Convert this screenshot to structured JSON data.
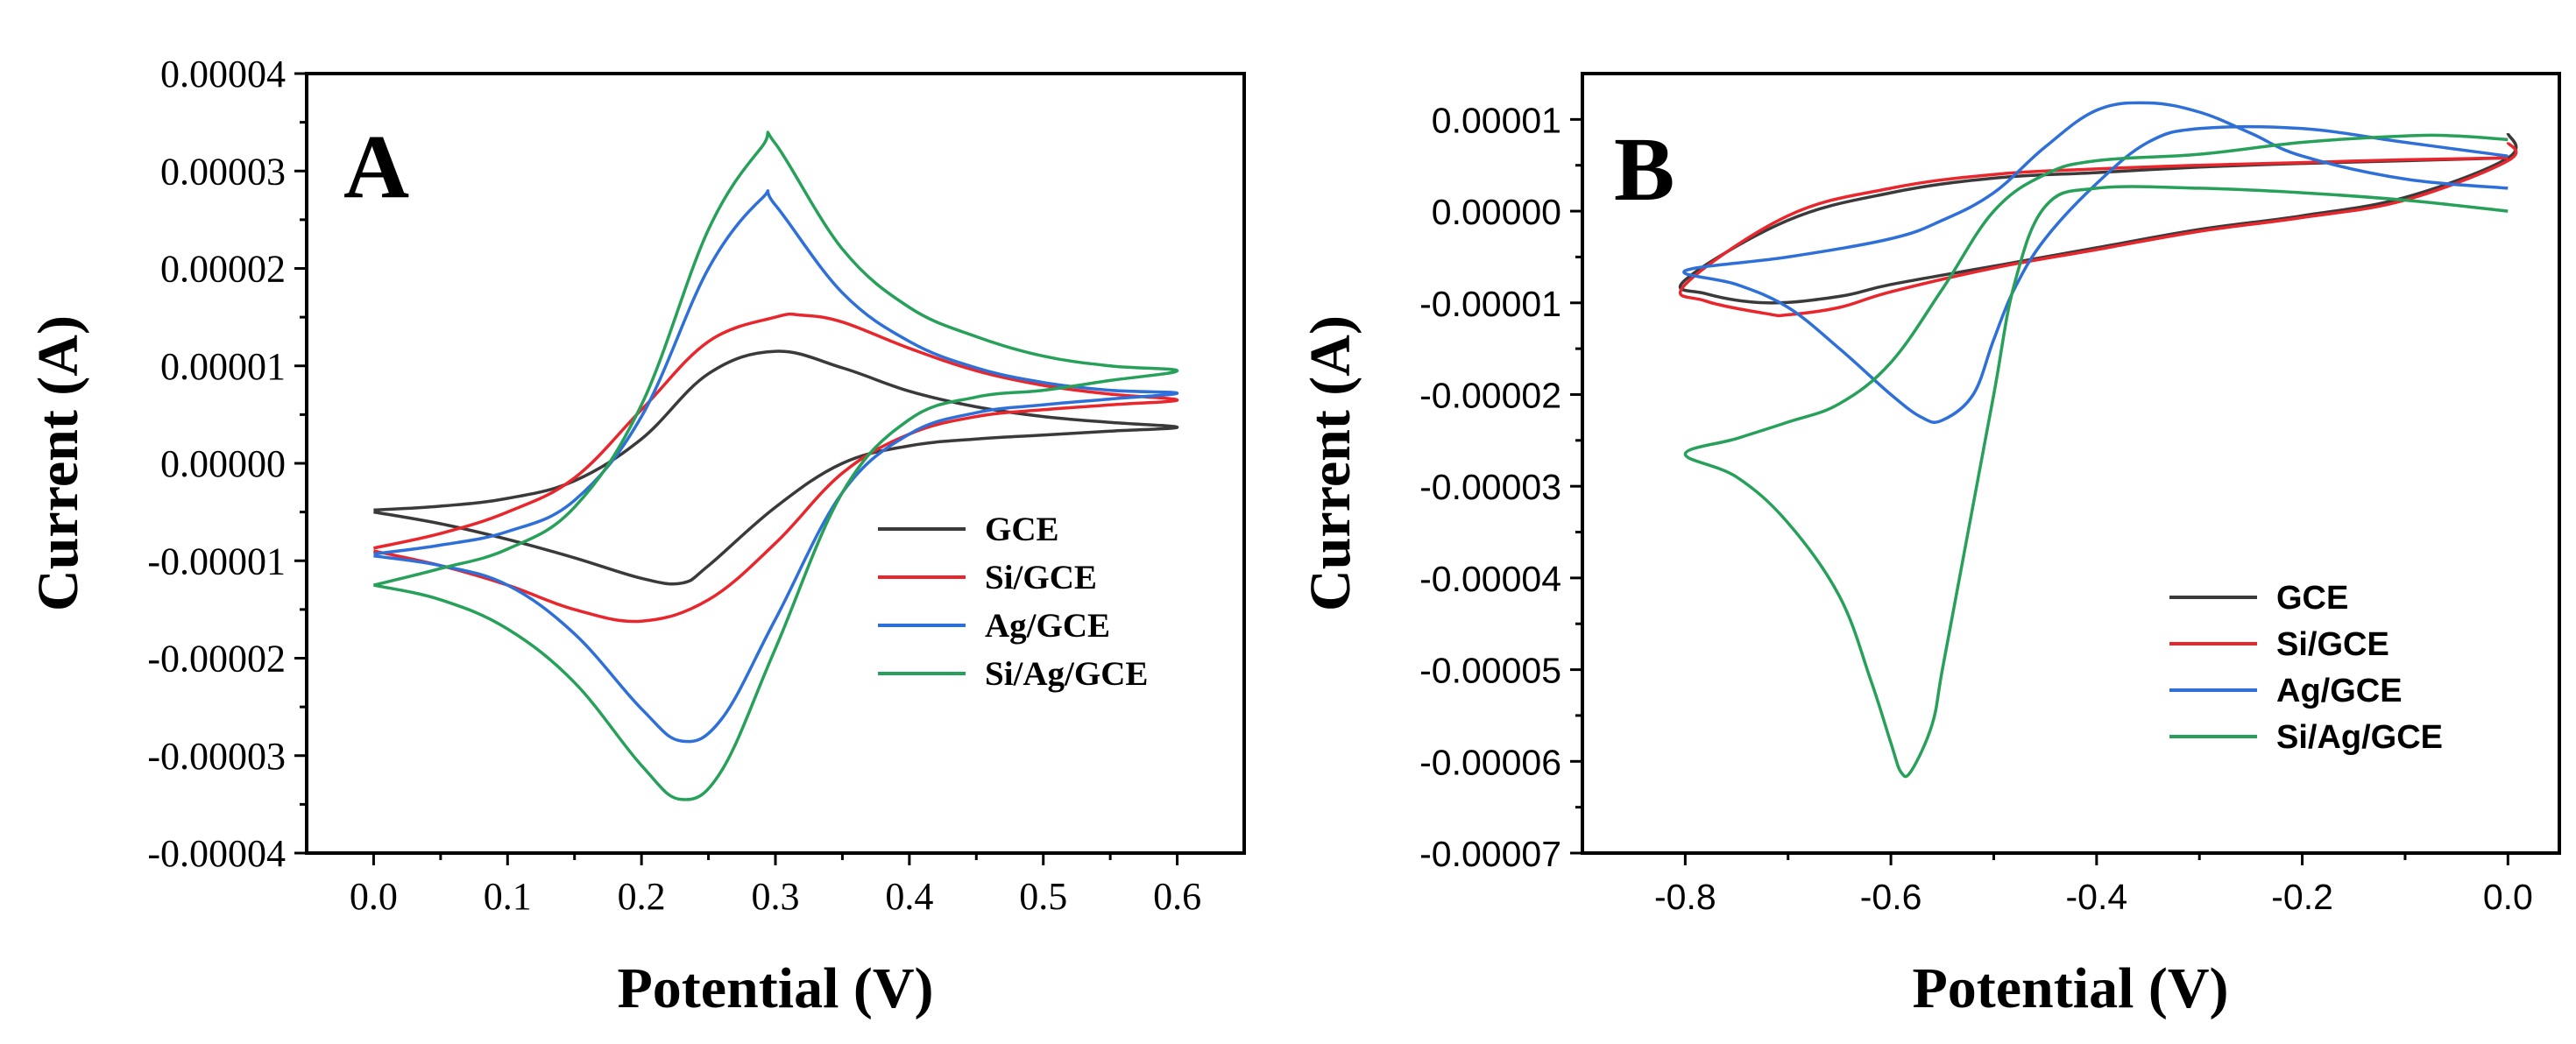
{
  "chart_data": [
    {
      "type": "line",
      "panel": "A",
      "xlabel": "Potential (V)",
      "ylabel": "Current (A)",
      "xlim": [
        -0.05,
        0.65
      ],
      "ylim": [
        -4e-05,
        4e-05
      ],
      "xticks": [
        "0.0",
        "0.1",
        "0.2",
        "0.3",
        "0.4",
        "0.5",
        "0.6"
      ],
      "xtick_values": [
        0.0,
        0.1,
        0.2,
        0.3,
        0.4,
        0.5,
        0.6
      ],
      "yticks": [
        "0.00004",
        "0.00003",
        "0.00002",
        "0.00001",
        "0.00000",
        "-0.00001",
        "-0.00002",
        "-0.00003",
        "-0.00004"
      ],
      "ytick_values": [
        4e-05,
        3e-05,
        2e-05,
        1e-05,
        0.0,
        -1e-05,
        -2e-05,
        -3e-05,
        -4e-05
      ],
      "grid": false,
      "legend_position": "lower-right",
      "series": [
        {
          "name": "GCE",
          "color": "#3a3a3a",
          "x": [
            0.0,
            0.05,
            0.1,
            0.15,
            0.2,
            0.25,
            0.3,
            0.35,
            0.4,
            0.45,
            0.5,
            0.55,
            0.6,
            0.55,
            0.5,
            0.45,
            0.4,
            0.35,
            0.3,
            0.25,
            0.23,
            0.2,
            0.15,
            0.1,
            0.05,
            0.0
          ],
          "y": [
            -4.8e-06,
            -4.4e-06,
            -3.6e-06,
            -1.8e-06,
            2.5e-06,
            9.2e-06,
            1.15e-05,
            9.8e-06,
            7.4e-06,
            5.8e-06,
            4.8e-06,
            4.2e-06,
            3.7e-06,
            3.3e-06,
            2.9e-06,
            2.5e-06,
            1.8e-06,
            0.0,
            -4.5e-06,
            -1.05e-05,
            -1.23e-05,
            -1.18e-05,
            -9.7e-06,
            -7.8e-06,
            -6.2e-06,
            -5e-06
          ]
        },
        {
          "name": "Si/GCE",
          "color": "#e8262c",
          "x": [
            0.0,
            0.05,
            0.1,
            0.15,
            0.2,
            0.25,
            0.3,
            0.32,
            0.35,
            0.4,
            0.45,
            0.5,
            0.55,
            0.6,
            0.55,
            0.5,
            0.45,
            0.4,
            0.35,
            0.3,
            0.25,
            0.2,
            0.15,
            0.1,
            0.05,
            0.0
          ],
          "y": [
            -8.7e-06,
            -7.2e-06,
            -5e-06,
            -1.5e-06,
            5.5e-06,
            1.25e-05,
            1.5e-05,
            1.52e-05,
            1.45e-05,
            1.18e-05,
            9.5e-06,
            8e-06,
            7.1e-06,
            6.5e-06,
            6e-06,
            5.5e-06,
            4.8e-06,
            3e-06,
            -1e-06,
            -8.2e-06,
            -1.4e-05,
            -1.62e-05,
            -1.5e-05,
            -1.25e-05,
            -1.05e-05,
            -9e-06
          ]
        },
        {
          "name": "Ag/GCE",
          "color": "#2e6fd8",
          "x": [
            0.0,
            0.05,
            0.1,
            0.15,
            0.2,
            0.25,
            0.29,
            0.3,
            0.35,
            0.4,
            0.45,
            0.5,
            0.55,
            0.6,
            0.55,
            0.5,
            0.45,
            0.4,
            0.35,
            0.3,
            0.26,
            0.23,
            0.2,
            0.15,
            0.1,
            0.05,
            0.0
          ],
          "y": [
            -9.3e-06,
            -8.4e-06,
            -7e-06,
            -3.8e-06,
            4.8e-06,
            2e-05,
            2.72e-05,
            2.65e-05,
            1.75e-05,
            1.25e-05,
            9.8e-06,
            8.3e-06,
            7.5e-06,
            7.2e-06,
            6.6e-06,
            6e-06,
            5.2e-06,
            3e-06,
            -3e-06,
            -1.6e-05,
            -2.62e-05,
            -2.85e-05,
            -2.52e-05,
            -1.75e-05,
            -1.25e-05,
            -1.05e-05,
            -9.5e-06
          ]
        },
        {
          "name": "Si/Ag/GCE",
          "color": "#27a05a",
          "x": [
            0.0,
            0.05,
            0.1,
            0.15,
            0.2,
            0.25,
            0.29,
            0.3,
            0.35,
            0.4,
            0.45,
            0.5,
            0.55,
            0.6,
            0.55,
            0.5,
            0.45,
            0.4,
            0.35,
            0.3,
            0.26,
            0.23,
            0.2,
            0.15,
            0.1,
            0.05,
            0.0
          ],
          "y": [
            -1.25e-05,
            -1.08e-05,
            -8.8e-06,
            -4.5e-06,
            6e-06,
            2.4e-05,
            3.25e-05,
            3.28e-05,
            2.2e-05,
            1.6e-05,
            1.3e-05,
            1.1e-05,
            1e-05,
            9.5e-06,
            8.5e-06,
            7.5e-06,
            6.8e-06,
            4.5e-06,
            -3e-06,
            -1.9e-05,
            -3.15e-05,
            -3.45e-05,
            -3.1e-05,
            -2.25e-05,
            -1.7e-05,
            -1.4e-05,
            -1.25e-05
          ]
        }
      ]
    },
    {
      "type": "line",
      "panel": "B",
      "xlabel": "Potential (V)",
      "ylabel": "Current (A)",
      "xlim": [
        -0.9,
        0.05
      ],
      "ylim": [
        -7e-05,
        1.5e-05
      ],
      "xticks": [
        "-0.8",
        "-0.6",
        "-0.4",
        "-0.2",
        "0.0"
      ],
      "xtick_values": [
        -0.8,
        -0.6,
        -0.4,
        -0.2,
        0.0
      ],
      "yticks": [
        "0.00001",
        "0.00000",
        "-0.00001",
        "-0.00002",
        "-0.00003",
        "-0.00004",
        "-0.00005",
        "-0.00006",
        "-0.00007"
      ],
      "ytick_values": [
        1e-05,
        0.0,
        -1e-05,
        -2e-05,
        -3e-05,
        -4e-05,
        -5e-05,
        -6e-05,
        -7e-05
      ],
      "grid": false,
      "legend_position": "lower-right",
      "series": [
        {
          "name": "GCE",
          "color": "#3a3a3a",
          "x": [
            0.0,
            -0.1,
            -0.2,
            -0.3,
            -0.4,
            -0.5,
            -0.6,
            -0.7,
            -0.8,
            -0.78,
            -0.72,
            -0.65,
            -0.6,
            -0.5,
            -0.4,
            -0.3,
            -0.2,
            -0.1,
            0.0,
            0.0
          ],
          "y": [
            5.8e-06,
            5.5e-06,
            5.2e-06,
            4.8e-06,
            4.2e-06,
            3.6e-06,
            2e-06,
            -1e-06,
            -7.5e-06,
            -9e-06,
            -1e-05,
            -9.3e-06,
            -8e-06,
            -6e-06,
            -4e-06,
            -2e-06,
            -5e-07,
            1.5e-06,
            5.8e-06,
            8.5e-06
          ]
        },
        {
          "name": "Si/GCE",
          "color": "#e8262c",
          "x": [
            0.0,
            -0.1,
            -0.2,
            -0.3,
            -0.4,
            -0.5,
            -0.6,
            -0.7,
            -0.8,
            -0.78,
            -0.72,
            -0.7,
            -0.65,
            -0.6,
            -0.5,
            -0.4,
            -0.3,
            -0.2,
            -0.1,
            0.0,
            0.0
          ],
          "y": [
            5.8e-06,
            5.6e-06,
            5.3e-06,
            5e-06,
            4.6e-06,
            4e-06,
            2.5e-06,
            -5e-07,
            -8e-06,
            -9.8e-06,
            -1.12e-05,
            -1.13e-05,
            -1.05e-05,
            -8.8e-06,
            -6.2e-06,
            -4.2e-06,
            -2.2e-06,
            -7e-07,
            1.2e-06,
            5.5e-06,
            7.5e-06
          ]
        },
        {
          "name": "Ag/GCE",
          "color": "#2e6fd8",
          "x": [
            0.0,
            -0.1,
            -0.2,
            -0.25,
            -0.3,
            -0.35,
            -0.4,
            -0.45,
            -0.5,
            -0.55,
            -0.6,
            -0.7,
            -0.8,
            -0.75,
            -0.7,
            -0.65,
            -0.6,
            -0.57,
            -0.55,
            -0.52,
            -0.5,
            -0.48,
            -0.45,
            -0.4,
            -0.35,
            -0.3,
            -0.2,
            -0.1,
            0.0
          ],
          "y": [
            2.5e-06,
            3.5e-06,
            6e-06,
            8.5e-06,
            1.08e-05,
            1.18e-05,
            1.1e-05,
            7e-06,
            2e-06,
            -1e-06,
            -3e-06,
            -5e-06,
            -6.5e-06,
            -8e-06,
            -1.05e-05,
            -1.5e-05,
            -2e-05,
            -2.25e-05,
            -2.28e-05,
            -2e-05,
            -1.4e-05,
            -8.5e-06,
            -3e-06,
            3e-06,
            7.5e-06,
            9e-06,
            9e-06,
            7.5e-06,
            6e-06
          ]
        },
        {
          "name": "Si/Ag/GCE",
          "color": "#27a05a",
          "x": [
            0.0,
            -0.05,
            -0.1,
            -0.2,
            -0.3,
            -0.4,
            -0.45,
            -0.5,
            -0.55,
            -0.6,
            -0.65,
            -0.7,
            -0.75,
            -0.8,
            -0.75,
            -0.7,
            -0.65,
            -0.62,
            -0.6,
            -0.59,
            -0.58,
            -0.56,
            -0.55,
            -0.53,
            -0.5,
            -0.48,
            -0.45,
            -0.4,
            -0.3,
            -0.2,
            -0.1,
            0.0
          ],
          "y": [
            7.8e-06,
            8.2e-06,
            8.2e-06,
            7.5e-06,
            6.2e-06,
            5.5e-06,
            4e-06,
            0.0,
            -8.5e-06,
            -1.65e-05,
            -2.1e-05,
            -2.3e-05,
            -2.48e-05,
            -2.65e-05,
            -2.9e-05,
            -3.4e-05,
            -4.2e-05,
            -5.1e-05,
            -5.8e-05,
            -6.12e-05,
            -6.1e-05,
            -5.6e-05,
            -5e-05,
            -3.8e-05,
            -2e-05,
            -8e-06,
            5e-07,
            2.5e-06,
            2.5e-06,
            2e-06,
            1.2e-06,
            0.0
          ]
        }
      ]
    }
  ]
}
